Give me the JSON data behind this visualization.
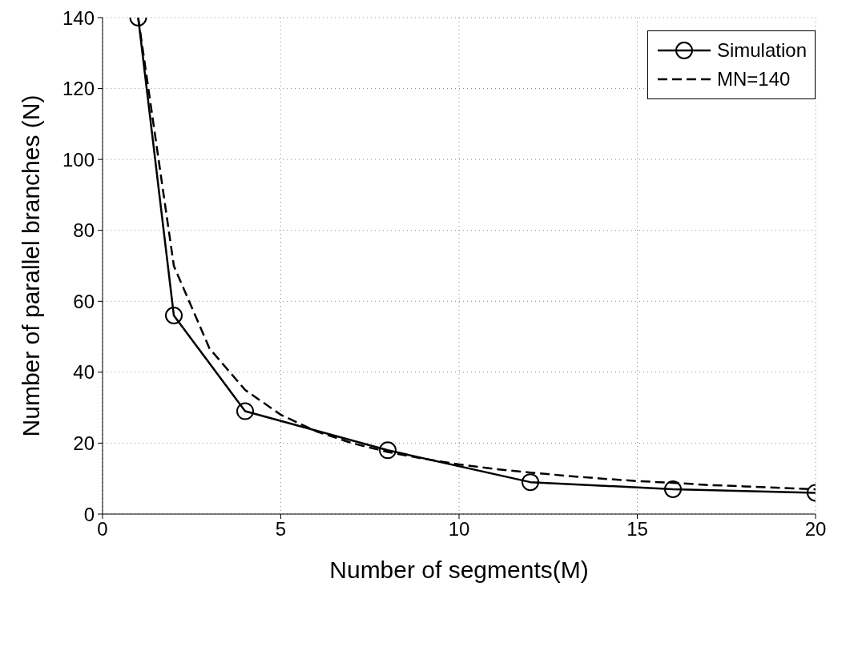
{
  "chart_data": {
    "type": "line",
    "xlabel": "Number of segments(M)",
    "ylabel": "Number of parallel branches (N)",
    "xlim": [
      0,
      20
    ],
    "xticks": [
      0,
      5,
      10,
      15,
      20
    ],
    "ylim": [
      0,
      140
    ],
    "yticks": [
      0,
      20,
      40,
      60,
      80,
      100,
      120,
      140
    ],
    "grid": true,
    "legend": "top right",
    "series": [
      {
        "name": "Simulation",
        "color": "#000000",
        "marker": "circle",
        "line_style": "solid",
        "x": [
          1,
          2,
          4,
          8,
          12,
          16,
          20
        ],
        "values": [
          140,
          56,
          29,
          18,
          9,
          7,
          6
        ]
      },
      {
        "name": "MN=140",
        "color": "#000000",
        "marker": "none",
        "line_style": "dashed",
        "x": [
          1,
          2,
          3,
          4,
          5,
          6,
          7,
          8,
          9,
          10,
          11,
          12,
          13,
          14,
          15,
          16,
          17,
          18,
          19,
          20
        ],
        "values": [
          140,
          70,
          46.7,
          35,
          28,
          23.3,
          20,
          17.5,
          15.6,
          14,
          12.7,
          11.7,
          10.8,
          10,
          9.3,
          8.8,
          8.2,
          7.8,
          7.4,
          7
        ]
      }
    ]
  }
}
